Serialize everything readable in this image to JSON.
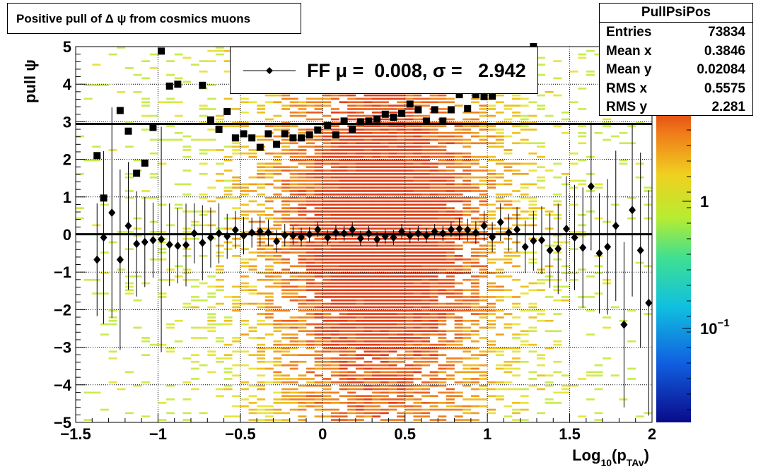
{
  "title": "Positive pull of Δ ψ from cosmics muons",
  "stats": {
    "name": "PullPsiPos",
    "rows": [
      {
        "key": "Entries",
        "value": "73834"
      },
      {
        "key": "Mean x",
        "value": "0.3846"
      },
      {
        "key": "Mean y",
        "value": "0.02084"
      },
      {
        "key": "RMS x",
        "value": "0.5575"
      },
      {
        "key": "RMS y",
        "value": "2.281"
      }
    ]
  },
  "legend": {
    "label": "FF μ =  0.008, σ =   2.942"
  },
  "colors": {
    "background": "#ffffff",
    "frame": "#000000",
    "markers": "#000000"
  },
  "chart_data": {
    "type": "heatmap",
    "title": "Positive pull of Δ ψ from cosmics muons",
    "xlabel": "Log₁₀(p_TAv)",
    "ylabel": "pull ψ",
    "xlim": [
      -1.5,
      2
    ],
    "ylim": [
      -5,
      5
    ],
    "x_ticks": [
      "−1.5",
      "−1",
      "−0.5",
      "0",
      "0.5",
      "1",
      "1.5",
      "2"
    ],
    "y_ticks": [
      "−5",
      "−4",
      "−3",
      "−2",
      "−1",
      "0",
      "1",
      "2",
      "3",
      "4",
      "5"
    ],
    "z_scale": "log",
    "z_ticks": [
      "10⁻¹",
      "1"
    ],
    "grid": true,
    "reference_lines": [
      0.008,
      2.942
    ],
    "series": [
      {
        "name": "mean",
        "marker": "diamond",
        "x": [
          -1.37,
          -1.33,
          -1.28,
          -1.23,
          -1.18,
          -1.13,
          -1.08,
          -1.03,
          -0.98,
          -0.93,
          -0.88,
          -0.83,
          -0.78,
          -0.73,
          -0.68,
          -0.63,
          -0.58,
          -0.53,
          -0.48,
          -0.43,
          -0.38,
          -0.33,
          -0.28,
          -0.23,
          -0.18,
          -0.13,
          -0.08,
          -0.03,
          0.03,
          0.08,
          0.13,
          0.18,
          0.23,
          0.28,
          0.33,
          0.38,
          0.43,
          0.48,
          0.53,
          0.58,
          0.63,
          0.68,
          0.73,
          0.78,
          0.83,
          0.88,
          0.93,
          0.98,
          1.03,
          1.08,
          1.13,
          1.18,
          1.23,
          1.28,
          1.33,
          1.38,
          1.43,
          1.48,
          1.53,
          1.58,
          1.63,
          1.68,
          1.73,
          1.78,
          1.83,
          1.88,
          1.93,
          1.98
        ],
        "y": [
          -0.67,
          -0.08,
          0.58,
          -0.67,
          0.23,
          -0.25,
          -0.2,
          -0.15,
          -0.13,
          -0.27,
          -0.3,
          -0.28,
          0.03,
          -0.22,
          -0.08,
          0.03,
          -0.05,
          0.12,
          -0.03,
          0.05,
          0.08,
          0.05,
          -0.18,
          -0.02,
          -0.03,
          -0.07,
          0.0,
          0.13,
          -0.08,
          0.05,
          0.03,
          0.13,
          -0.1,
          0.03,
          -0.13,
          -0.05,
          -0.08,
          0.08,
          -0.03,
          0.03,
          -0.03,
          0.08,
          0.03,
          0.13,
          0.15,
          0.12,
          0.05,
          0.23,
          -0.07,
          0.33,
          0.05,
          0.13,
          -0.33,
          -0.17,
          -0.15,
          -0.42,
          -0.38,
          0.15,
          -0.08,
          -0.35,
          1.28,
          -0.5,
          -0.33,
          0.23,
          -2.4,
          0.65,
          -0.42,
          -1.82
        ],
        "yerr": [
          1.5,
          2.3,
          2.8,
          2.4,
          1.7,
          1.4,
          1.2,
          1.0,
          3.0,
          1.1,
          1.0,
          1.1,
          0.8,
          1.0,
          0.8,
          0.8,
          0.6,
          0.5,
          0.5,
          0.4,
          0.4,
          0.35,
          0.3,
          0.3,
          0.25,
          0.25,
          0.2,
          0.2,
          0.2,
          0.2,
          0.2,
          0.2,
          0.2,
          0.2,
          0.2,
          0.2,
          0.2,
          0.2,
          0.2,
          0.2,
          0.2,
          0.2,
          0.2,
          0.2,
          0.3,
          0.3,
          0.3,
          0.4,
          0.4,
          0.5,
          0.5,
          0.6,
          0.7,
          0.8,
          0.9,
          1.0,
          1.2,
          1.4,
          1.4,
          1.6,
          1.7,
          1.6,
          1.8,
          2.0,
          2.2,
          2.3,
          2.6,
          3.0
        ]
      },
      {
        "name": "RMS",
        "marker": "square",
        "x": [
          -1.37,
          -1.33,
          -1.23,
          -1.18,
          -1.13,
          -1.08,
          -1.03,
          -0.98,
          -0.93,
          -0.88,
          -0.73,
          -0.68,
          -0.63,
          -0.58,
          -0.53,
          -0.48,
          -0.43,
          -0.38,
          -0.33,
          -0.28,
          -0.23,
          -0.18,
          -0.13,
          -0.08,
          -0.03,
          0.03,
          0.08,
          0.13,
          0.18,
          0.23,
          0.28,
          0.33,
          0.38,
          0.43,
          0.48,
          0.53,
          0.58,
          0.63,
          0.68,
          0.73,
          0.78,
          0.83,
          0.88,
          0.93,
          0.98,
          1.03,
          1.28
        ],
        "y": [
          2.1,
          0.97,
          3.3,
          2.75,
          1.63,
          1.9,
          2.85,
          4.88,
          3.95,
          4.0,
          3.97,
          3.05,
          2.8,
          3.27,
          2.57,
          2.68,
          2.57,
          2.32,
          2.68,
          2.4,
          2.68,
          2.57,
          2.57,
          2.65,
          2.78,
          2.9,
          2.65,
          3.02,
          2.8,
          3.0,
          3.02,
          3.07,
          3.2,
          3.12,
          3.22,
          3.47,
          3.32,
          3.02,
          3.32,
          3.02,
          3.32,
          3.72,
          3.35,
          3.72,
          3.67,
          3.68,
          5.0
        ]
      }
    ]
  }
}
